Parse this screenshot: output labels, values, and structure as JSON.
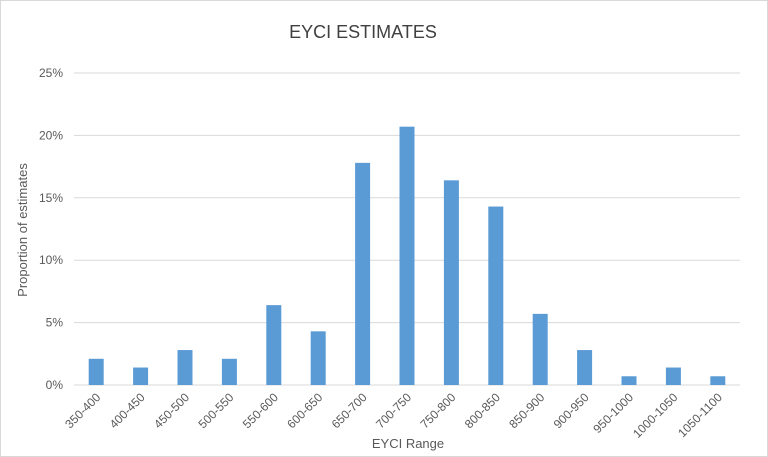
{
  "chart_data": {
    "type": "bar",
    "title": "EYCI ESTIMATES",
    "xlabel": "EYCI Range",
    "ylabel": "Proportion of estimates",
    "categories": [
      "350-400",
      "400-450",
      "450-500",
      "500-550",
      "550-600",
      "600-650",
      "650-700",
      "700-750",
      "750-800",
      "800-850",
      "850-900",
      "900-950",
      "950-1000",
      "1000-1050",
      "1050-1100"
    ],
    "values": [
      2.1,
      1.4,
      2.8,
      2.1,
      6.4,
      4.3,
      17.8,
      20.7,
      16.4,
      14.3,
      5.7,
      2.8,
      0.7,
      1.4,
      0.7
    ],
    "ylim": [
      0,
      25
    ],
    "yticks": [
      "0%",
      "5%",
      "10%",
      "15%",
      "20%",
      "25%"
    ],
    "grid": true,
    "bar_color": "#5B9BD5",
    "grid_color": "#D9D9D9"
  }
}
